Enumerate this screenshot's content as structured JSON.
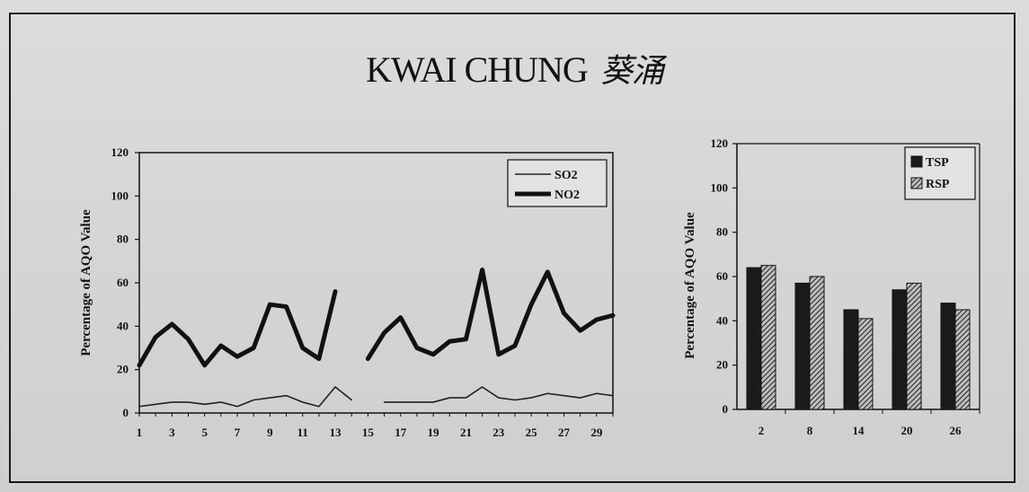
{
  "title": "KWAI CHUNG",
  "title_chinese": "葵涌",
  "chart_data": [
    {
      "type": "line",
      "ylabel": "Percentage of AQO Value",
      "xlabel": "",
      "ylim": [
        0,
        120
      ],
      "yticks": [
        0,
        20,
        40,
        60,
        80,
        100,
        120
      ],
      "x": [
        1,
        2,
        3,
        4,
        5,
        6,
        7,
        8,
        9,
        10,
        11,
        12,
        13,
        14,
        15,
        16,
        17,
        18,
        19,
        20,
        21,
        22,
        23,
        24,
        25,
        26,
        27,
        28,
        29,
        30
      ],
      "xtick_labels": [
        "1",
        "3",
        "5",
        "7",
        "9",
        "11",
        "13",
        "15",
        "17",
        "19",
        "21",
        "23",
        "25",
        "27",
        "29"
      ],
      "legend_position": "top-right",
      "series": [
        {
          "name": "SO2",
          "color": "#222222",
          "values": [
            3,
            4,
            5,
            5,
            4,
            5,
            3,
            6,
            7,
            8,
            5,
            3,
            12,
            6,
            null,
            5,
            5,
            5,
            5,
            7,
            7,
            12,
            7,
            6,
            7,
            9,
            8,
            7,
            9,
            8
          ]
        },
        {
          "name": "NO2",
          "color": "#111111",
          "values": [
            22,
            35,
            41,
            34,
            22,
            31,
            26,
            30,
            50,
            49,
            30,
            25,
            56,
            null,
            25,
            37,
            44,
            30,
            27,
            33,
            34,
            66,
            27,
            31,
            50,
            65,
            46,
            38,
            43,
            45
          ]
        }
      ]
    },
    {
      "type": "bar",
      "ylabel": "Percentage of AQO Value",
      "xlabel": "",
      "ylim": [
        0,
        120
      ],
      "yticks": [
        0,
        20,
        40,
        60,
        80,
        100,
        120
      ],
      "categories": [
        "2",
        "8",
        "14",
        "20",
        "26"
      ],
      "legend_position": "top-right",
      "series": [
        {
          "name": "TSP",
          "color": "#1a1a1a",
          "values": [
            64,
            57,
            45,
            54,
            48
          ]
        },
        {
          "name": "RSP",
          "color": "#6a6a6a",
          "values": [
            65,
            60,
            41,
            57,
            45
          ]
        }
      ]
    }
  ]
}
